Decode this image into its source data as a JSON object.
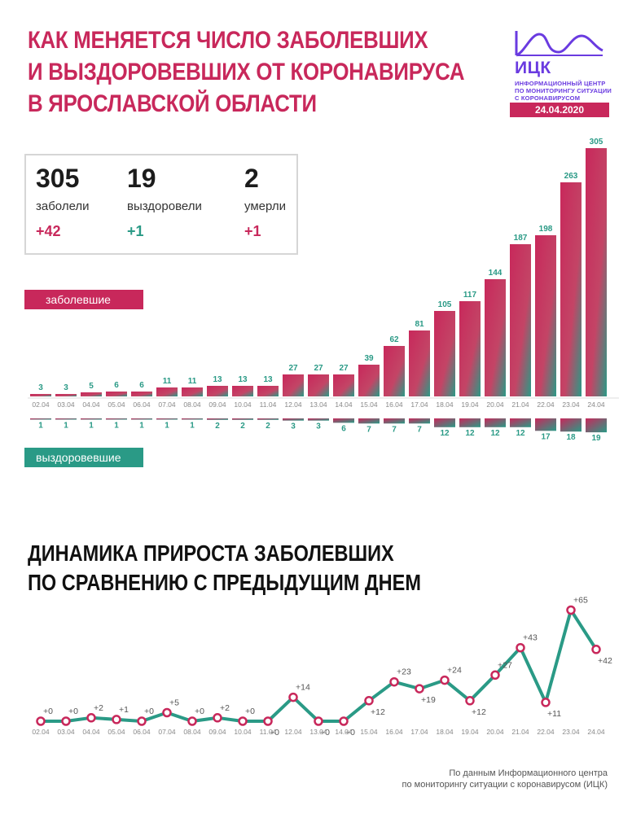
{
  "title_lines": [
    "КАК МЕНЯЕТСЯ ЧИСЛО ЗАБОЛЕВШИХ",
    "И ВЫЗДОРОВЕВШИХ ОТ КОРОНАВИРУСА",
    "В ЯРОСЛАВСКОЙ ОБЛАСТИ"
  ],
  "logo": {
    "abbr": "ИЦК",
    "lines": [
      "ИНФОРМАЦИОННЫЙ ЦЕНТР",
      "ПО МОНИТОРИНГУ СИТУАЦИИ",
      "С КОРОНАВИРУСОМ"
    ],
    "date": "24.04.2020"
  },
  "stats": [
    {
      "value": "305",
      "label": "заболели",
      "delta": "+42"
    },
    {
      "value": "19",
      "label": "выздоровели",
      "delta": "+1"
    },
    {
      "value": "2",
      "label": "умерли",
      "delta": "+1"
    }
  ],
  "legend": {
    "sick": "заболевшие",
    "recovered": "выздоровевшие"
  },
  "section_title_lines": [
    "ДИНАМИКА ПРИРОСТА ЗАБОЛЕВШИХ",
    "ПО СРАВНЕНИЮ С ПРЕДЫДУЩИМ ДНЕМ"
  ],
  "footer_lines": [
    "По данным Информационного центра",
    "по мониторингу ситуации с коронавирусом (ИЦК)"
  ],
  "colors": {
    "crimson": "#c8285b",
    "teal": "#2a9a86",
    "text": "#1c1c1c",
    "muted": "#888888"
  },
  "chart_data": [
    {
      "type": "bar",
      "categories": [
        "02.04",
        "03.04",
        "04.04",
        "05.04",
        "06.04",
        "07.04",
        "08.04",
        "09.04",
        "10.04",
        "11.04",
        "12.04",
        "13.04",
        "14.04",
        "15.04",
        "16.04",
        "17.04",
        "18.04",
        "19.04",
        "20.04",
        "21.04",
        "22.04",
        "23.04",
        "24.04"
      ],
      "series": [
        {
          "name": "заболевшие",
          "values": [
            3,
            3,
            5,
            6,
            6,
            11,
            11,
            13,
            13,
            13,
            27,
            27,
            27,
            39,
            62,
            81,
            105,
            117,
            144,
            187,
            198,
            263,
            305
          ]
        },
        {
          "name": "выздоровевшие",
          "values": [
            1,
            1,
            1,
            1,
            1,
            1,
            1,
            2,
            2,
            2,
            3,
            3,
            6,
            7,
            7,
            7,
            12,
            12,
            12,
            12,
            17,
            18,
            19
          ]
        }
      ]
    },
    {
      "type": "line",
      "x": [
        "02.04",
        "03.04",
        "04.04",
        "05.04",
        "06.04",
        "07.04",
        "08.04",
        "09.04",
        "10.04",
        "11.04",
        "12.04",
        "13.04",
        "14.04",
        "15.04",
        "16.04",
        "17.04",
        "18.04",
        "19.04",
        "20.04",
        "21.04",
        "22.04",
        "23.04",
        "24.04"
      ],
      "series": [
        {
          "values": [
            0,
            0,
            2,
            1,
            0,
            5,
            0,
            2,
            0,
            0,
            14,
            0,
            0,
            12,
            23,
            19,
            24,
            12,
            27,
            43,
            11,
            65,
            42
          ]
        }
      ],
      "labels": [
        "+0",
        "+0",
        "+2",
        "+1",
        "+0",
        "+5",
        "+0",
        "+2",
        "+0",
        "+0",
        "+14",
        "+0",
        "+0",
        "+12",
        "+23",
        "+19",
        "+24",
        "+12",
        "+27",
        "+43",
        "+11",
        "+65",
        "+42"
      ],
      "title": "ДИНАМИКА ПРИРОСТА ЗАБОЛЕВШИХ ПО СРАВНЕНИЮ С ПРЕДЫДУЩИМ ДНЕМ"
    }
  ]
}
